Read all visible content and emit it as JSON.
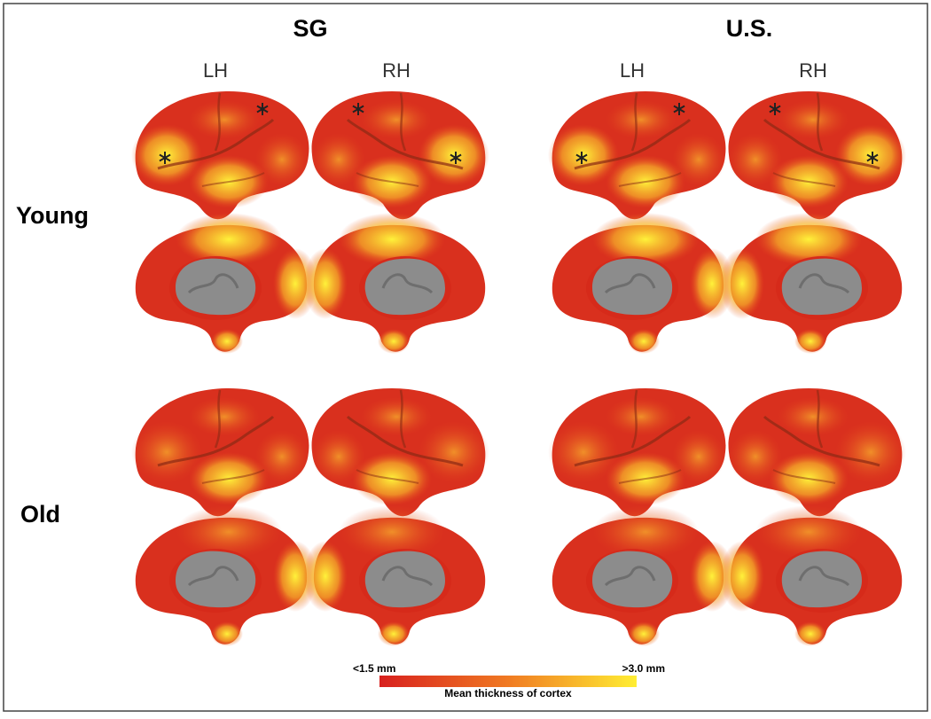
{
  "groups": [
    {
      "title": "SG",
      "hemispheres": [
        "LH",
        "RH"
      ]
    },
    {
      "title": "U.S.",
      "hemispheres": [
        "LH",
        "RH"
      ]
    }
  ],
  "rows": [
    "Young",
    "Old"
  ],
  "colorbar": {
    "min_label": "<1.5 mm",
    "max_label": ">3.0 mm",
    "title": "Mean thickness of cortex"
  }
}
